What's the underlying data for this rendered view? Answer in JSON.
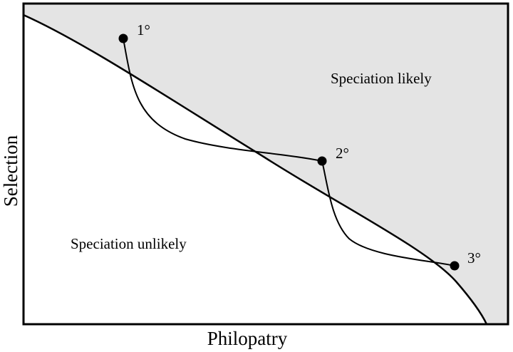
{
  "axes": {
    "x_label": "Philopatry",
    "y_label": "Selection"
  },
  "regions": {
    "upper_label": "Speciation likely",
    "lower_label": "Speciation unlikely"
  },
  "points": [
    {
      "label": "1°"
    },
    {
      "label": "2°"
    },
    {
      "label": "3°"
    }
  ],
  "colors": {
    "shaded_region": "#e4e4e4",
    "frame": "#000000",
    "curve": "#000000",
    "background": "#ffffff"
  }
}
